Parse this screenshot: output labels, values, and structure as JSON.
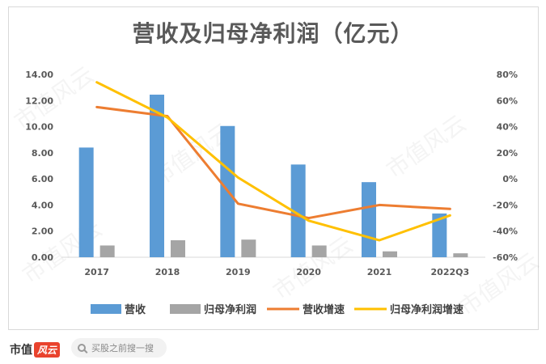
{
  "chart_data": {
    "type": "bar",
    "title": "营收及归母净利润（亿元）",
    "categories": [
      "2017",
      "2018",
      "2019",
      "2020",
      "2021",
      "2022Q3"
    ],
    "series": [
      {
        "name": "营收",
        "kind": "bar",
        "axis": "left",
        "color": "#5b9bd5",
        "values": [
          8.4,
          12.45,
          10.05,
          7.1,
          5.75,
          3.35
        ]
      },
      {
        "name": "归母净利润",
        "kind": "bar",
        "axis": "left",
        "color": "#a5a5a5",
        "values": [
          0.9,
          1.3,
          1.35,
          0.9,
          0.45,
          0.3
        ]
      },
      {
        "name": "营收增速",
        "kind": "line",
        "axis": "right",
        "color": "#ed7d31",
        "values": [
          55,
          48,
          -19,
          -30,
          -20,
          -23
        ]
      },
      {
        "name": "归母净利润增速",
        "kind": "line",
        "axis": "right",
        "color": "#ffc000",
        "values": [
          74,
          47,
          1,
          -32,
          -47,
          -28
        ]
      }
    ],
    "y_left": {
      "min": 0,
      "max": 14,
      "ticks": [
        "0.00",
        "2.00",
        "4.00",
        "6.00",
        "8.00",
        "10.00",
        "12.00",
        "14.00"
      ]
    },
    "y_right": {
      "min": -60,
      "max": 80,
      "ticks": [
        "-60%",
        "-40%",
        "-20%",
        "0%",
        "20%",
        "40%",
        "60%",
        "80%"
      ]
    },
    "grid": false,
    "legend_position": "bottom"
  },
  "branding": {
    "name": "市值",
    "logo": "风云"
  },
  "search": {
    "placeholder": "买股之前搜一搜"
  },
  "watermark": "市值风云"
}
